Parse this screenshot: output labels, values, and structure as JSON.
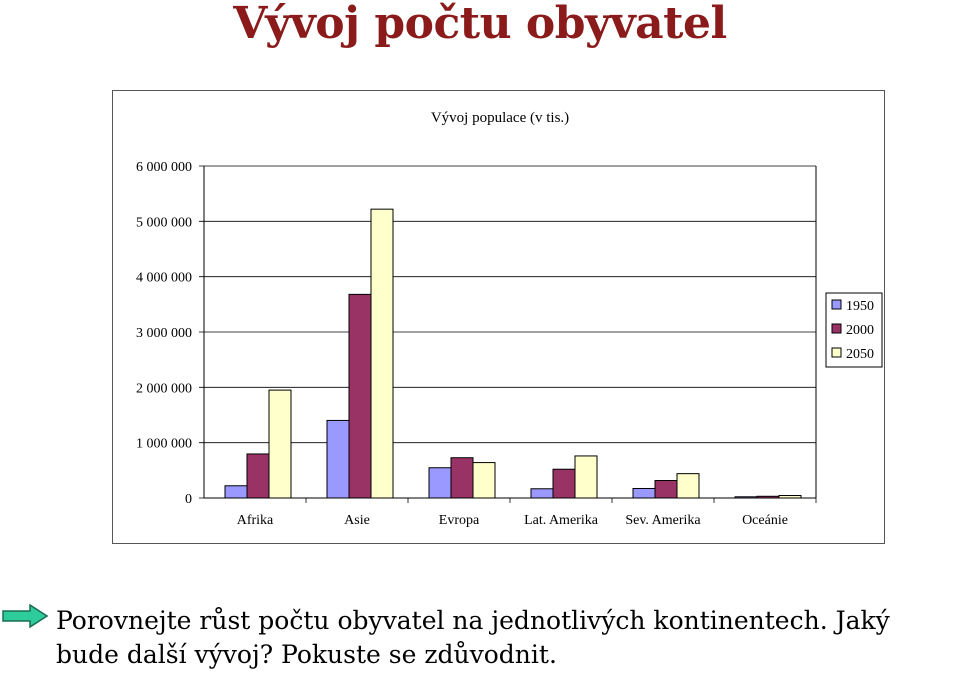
{
  "page": {
    "title": "Vývoj počtu obyvatel",
    "question": "Porovnejte růst počtu obyvatel na jednotlivých kontinentech. Jaký bude další vývoj? Pokuste se zdůvodnit."
  },
  "icons": {
    "bullet": "arrow-right-icon"
  },
  "chart_data": {
    "type": "bar",
    "title": "Vývoj populace (v tis.)",
    "categories": [
      "Afrika",
      "Asie",
      "Evropa",
      "Lat. Amerika",
      "Sev. Amerika",
      "Oceánie"
    ],
    "series": [
      {
        "name": "1950",
        "color": "#9999ff",
        "values": [
          221000,
          1402000,
          547000,
          167000,
          172000,
          13000
        ]
      },
      {
        "name": "2000",
        "color": "#993366",
        "values": [
          796000,
          3680000,
          728000,
          520000,
          316000,
          31000
        ]
      },
      {
        "name": "2050",
        "color": "#ffffcc",
        "values": [
          1950000,
          5220000,
          640000,
          760000,
          440000,
          45000
        ]
      }
    ],
    "yticks": [
      "0",
      "1 000 000",
      "2 000 000",
      "3 000 000",
      "4 000 000",
      "5 000 000",
      "6 000 000"
    ],
    "ylim": [
      0,
      6000000
    ],
    "legend": "right",
    "grid": false
  }
}
